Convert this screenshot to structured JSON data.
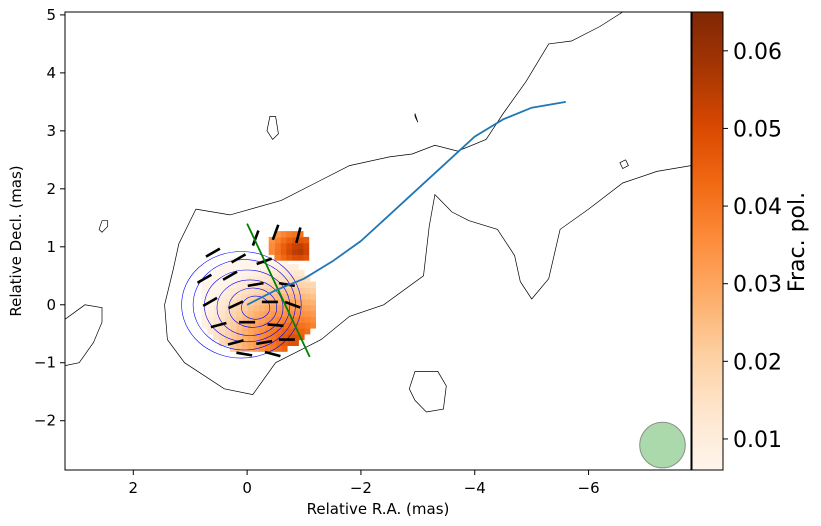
{
  "chart_data": {
    "type": "scatter",
    "xlabel": "Relative R.A. (mas)",
    "ylabel": "Relative Decl. (mas)",
    "xlim": [
      3.2,
      -7.8
    ],
    "ylim": [
      -2.85,
      5.05
    ],
    "x_ticks": [
      2,
      0,
      -2,
      -4,
      -6
    ],
    "x_tick_labels": [
      "2",
      "0",
      "−2",
      "−4",
      "−6"
    ],
    "y_ticks": [
      -2,
      -1,
      0,
      1,
      2,
      3,
      4,
      5
    ],
    "y_tick_labels": [
      "−2",
      "−1",
      "0",
      "1",
      "2",
      "3",
      "4",
      "5"
    ],
    "colorbar": {
      "label": "Frac. pol.",
      "range": [
        0.006,
        0.065
      ],
      "ticks": [
        0.01,
        0.02,
        0.03,
        0.04,
        0.05,
        0.06
      ],
      "tick_labels": [
        "0.01",
        "0.02",
        "0.03",
        "0.04",
        "0.05",
        "0.06"
      ],
      "colormap": "Oranges",
      "color_low": "#fff5eb",
      "color_high": "#7f2704"
    },
    "outer_contour": [
      [
        0.9,
        1.65
      ],
      [
        0.3,
        1.55
      ],
      [
        -0.6,
        1.8
      ],
      [
        -1.2,
        2.1
      ],
      [
        -1.8,
        2.4
      ],
      [
        -2.5,
        2.55
      ],
      [
        -2.9,
        2.6
      ],
      [
        -3.3,
        2.75
      ],
      [
        -3.7,
        2.65
      ],
      [
        -4.2,
        2.85
      ],
      [
        -4.5,
        3.3
      ],
      [
        -4.9,
        3.85
      ],
      [
        -5.3,
        4.5
      ],
      [
        -5.7,
        4.55
      ],
      [
        -6.2,
        4.8
      ],
      [
        -6.6,
        5.05
      ],
      [
        -7.0,
        5.05
      ],
      [
        -7.8,
        5.05
      ],
      [
        -7.8,
        2.4
      ],
      [
        -7.2,
        2.3
      ],
      [
        -6.6,
        2.1
      ],
      [
        -6.0,
        1.65
      ],
      [
        -5.5,
        1.3
      ],
      [
        -5.3,
        0.45
      ],
      [
        -5.0,
        0.1
      ],
      [
        -4.8,
        0.4
      ],
      [
        -4.7,
        0.85
      ],
      [
        -4.4,
        1.3
      ],
      [
        -3.9,
        1.45
      ],
      [
        -3.6,
        1.6
      ],
      [
        -3.3,
        1.9
      ],
      [
        -3.2,
        1.35
      ],
      [
        -3.1,
        0.5
      ],
      [
        -2.4,
        0.0
      ],
      [
        -1.8,
        -0.2
      ],
      [
        -1.3,
        -0.6
      ],
      [
        -0.9,
        -0.8
      ],
      [
        -0.5,
        -1.0
      ],
      [
        -0.1,
        -1.55
      ],
      [
        0.4,
        -1.45
      ],
      [
        1.1,
        -1.0
      ],
      [
        1.4,
        -0.6
      ],
      [
        1.45,
        0.0
      ],
      [
        1.3,
        0.6
      ],
      [
        1.2,
        1.05
      ],
      [
        0.9,
        1.65
      ]
    ],
    "islands": [
      [
        [
          2.55,
          1.45
        ],
        [
          2.6,
          1.3
        ],
        [
          2.55,
          1.25
        ],
        [
          2.45,
          1.35
        ],
        [
          2.45,
          1.45
        ],
        [
          2.55,
          1.45
        ]
      ],
      [
        [
          -0.5,
          3.25
        ],
        [
          -0.55,
          2.95
        ],
        [
          -0.45,
          2.85
        ],
        [
          -0.35,
          3.0
        ],
        [
          -0.4,
          3.25
        ],
        [
          -0.5,
          3.25
        ]
      ],
      [
        [
          -2.95,
          3.3
        ],
        [
          -3.0,
          3.15
        ],
        [
          -2.95,
          3.25
        ],
        [
          -2.95,
          3.3
        ]
      ],
      [
        [
          -6.65,
          2.5
        ],
        [
          -6.7,
          2.4
        ],
        [
          -6.6,
          2.35
        ],
        [
          -6.55,
          2.45
        ],
        [
          -6.65,
          2.5
        ]
      ],
      [
        [
          3.2,
          -0.25
        ],
        [
          2.85,
          0.0
        ],
        [
          2.55,
          -0.05
        ],
        [
          2.55,
          -0.3
        ],
        [
          2.7,
          -0.65
        ],
        [
          2.95,
          -1.0
        ],
        [
          3.2,
          -1.05
        ]
      ],
      [
        [
          -2.95,
          -1.15
        ],
        [
          -3.35,
          -1.15
        ],
        [
          -3.5,
          -1.4
        ],
        [
          -3.45,
          -1.8
        ],
        [
          -3.15,
          -1.85
        ],
        [
          -2.95,
          -1.65
        ],
        [
          -2.85,
          -1.45
        ],
        [
          -2.95,
          -1.15
        ]
      ]
    ],
    "inner_contours": [
      {
        "cx": 0.1,
        "cy": 0.0,
        "rx": 1.05,
        "ry": 0.92
      },
      {
        "cx": 0.05,
        "cy": 0.0,
        "rx": 0.9,
        "ry": 0.78
      },
      {
        "cx": 0.0,
        "cy": -0.02,
        "rx": 0.75,
        "ry": 0.62
      },
      {
        "cx": -0.05,
        "cy": -0.05,
        "rx": 0.58,
        "ry": 0.48
      },
      {
        "cx": -0.1,
        "cy": -0.05,
        "rx": 0.42,
        "ry": 0.34
      },
      {
        "cx": -0.15,
        "cy": -0.05,
        "rx": 0.25,
        "ry": 0.2
      }
    ],
    "pol_regions": [
      {
        "cx": -0.2,
        "cy": 0.0,
        "rx": 1.05,
        "ry": 0.85,
        "fmin": 0.006,
        "fmax": 0.05,
        "peak_x": -0.8,
        "peak_y": -0.6
      },
      {
        "cx": -0.75,
        "cy": 1.0,
        "rx": 0.38,
        "ry": 0.28,
        "fmin": 0.03,
        "fmax": 0.058,
        "peak_x": -0.9,
        "peak_y": 0.95
      }
    ],
    "evpa_vectors": [
      [
        -0.15,
        1.15,
        70
      ],
      [
        -0.5,
        1.25,
        70
      ],
      [
        -0.9,
        1.2,
        75
      ],
      [
        0.6,
        0.9,
        30
      ],
      [
        0.15,
        0.8,
        30
      ],
      [
        -0.3,
        0.75,
        20
      ],
      [
        0.75,
        0.45,
        30
      ],
      [
        0.3,
        0.5,
        30
      ],
      [
        -0.15,
        0.35,
        10
      ],
      [
        -0.7,
        0.35,
        -10
      ],
      [
        0.65,
        0.05,
        30
      ],
      [
        0.2,
        0.0,
        25
      ],
      [
        -0.4,
        0.05,
        0
      ],
      [
        -0.8,
        0.0,
        -20
      ],
      [
        0.5,
        -0.35,
        15
      ],
      [
        0.0,
        -0.3,
        0
      ],
      [
        -0.5,
        -0.35,
        -5
      ],
      [
        0.2,
        -0.65,
        15
      ],
      [
        -0.3,
        -0.65,
        10
      ],
      [
        -0.7,
        -0.6,
        0
      ],
      [
        0.05,
        -0.85,
        -10
      ],
      [
        -0.45,
        -0.85,
        -15
      ]
    ],
    "jet_ridge": [
      [
        0.0,
        0.0
      ],
      [
        -0.5,
        0.25
      ],
      [
        -1.0,
        0.45
      ],
      [
        -1.5,
        0.75
      ],
      [
        -2.0,
        1.1
      ],
      [
        -2.5,
        1.55
      ],
      [
        -3.0,
        2.0
      ],
      [
        -3.5,
        2.45
      ],
      [
        -4.0,
        2.9
      ],
      [
        -4.5,
        3.2
      ],
      [
        -5.0,
        3.4
      ],
      [
        -5.6,
        3.5
      ]
    ],
    "green_line": [
      [
        0.0,
        1.4
      ],
      [
        -1.1,
        -0.9
      ]
    ],
    "beam": {
      "x": -7.3,
      "y": -2.42,
      "radius": 0.4,
      "color": "#2ca02c"
    },
    "colors": {
      "ridge": "#1f77b4",
      "green_line": "#008000",
      "inner_contours": "#0000ff",
      "outer_contour": "#000000",
      "evpa": "#000000"
    }
  }
}
